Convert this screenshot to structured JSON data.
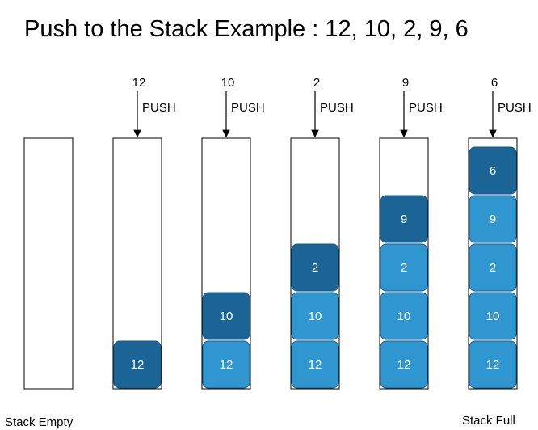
{
  "title": "Push to the Stack Example : 12, 10, 2, 9, 6",
  "push_label": "PUSH",
  "stacks": [
    {
      "incoming": "",
      "items": []
    },
    {
      "incoming": "12",
      "items": [
        "12"
      ]
    },
    {
      "incoming": "10",
      "items": [
        "12",
        "10"
      ]
    },
    {
      "incoming": "2",
      "items": [
        "12",
        "10",
        "2"
      ]
    },
    {
      "incoming": "9",
      "items": [
        "12",
        "10",
        "2",
        "9"
      ]
    },
    {
      "incoming": "6",
      "items": [
        "12",
        "10",
        "2",
        "9",
        "6"
      ]
    }
  ],
  "labels": {
    "empty": "Stack Empty",
    "full": "Stack Full"
  },
  "colors": {
    "top_block": "#1a6496",
    "block": "#2f96d0",
    "block_border": "#1a5a8a",
    "stack_border": "#000000"
  }
}
